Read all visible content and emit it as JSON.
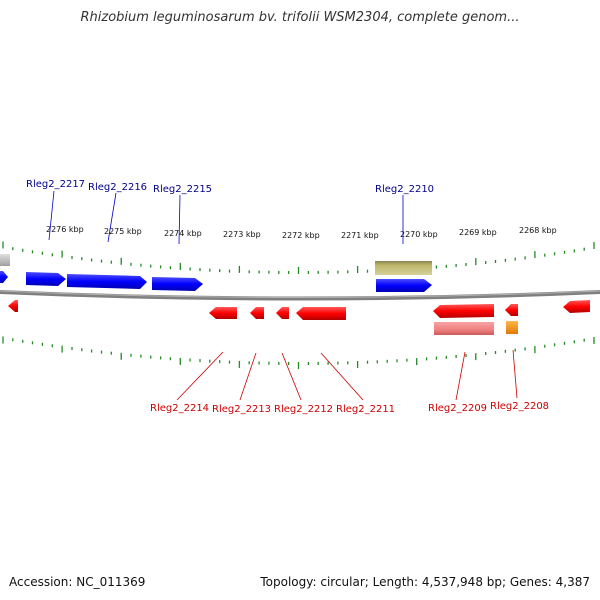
{
  "title": "Rhizobium leguminosarum bv. trifolii WSM2304, complete genom...",
  "footer": {
    "accession": "Accession: NC_011369",
    "summary": "Topology: circular; Length: 4,537,948 bp; Genes: 4,387"
  },
  "colors": {
    "forward_cds": "#0000ff",
    "reverse_cds": "#ff0000",
    "forward_label": "#00008b",
    "reverse_label": "#cc0000",
    "tick": "#228b22",
    "backbone": "#808080",
    "forward_other": "#bdb76b",
    "reverse_other": "#f08080",
    "reverse_misc": "#ff8c00",
    "partial_gray": "#c0c0c0"
  },
  "axis": {
    "direction": "decreasing left-to-right",
    "tick_labels": [
      "2276 kbp",
      "2275 kbp",
      "2274 kbp",
      "2273 kbp",
      "2272 kbp",
      "2271 kbp",
      "2270 kbp",
      "2269 kbp",
      "2268 kbp"
    ]
  },
  "labels_forward": [
    "Rleg2_2217",
    "Rleg2_2216",
    "Rleg2_2215",
    "Rleg2_2210"
  ],
  "labels_reverse": [
    "Rleg2_2214",
    "Rleg2_2213",
    "Rleg2_2212",
    "Rleg2_2211",
    "Rleg2_2209",
    "Rleg2_2208"
  ],
  "features": {
    "forward": [
      {
        "type": "CDS",
        "color": "partial_gray"
      },
      {
        "type": "CDS",
        "color": "forward_cds"
      },
      {
        "type": "CDS",
        "color": "forward_cds"
      },
      {
        "type": "CDS",
        "color": "forward_cds"
      },
      {
        "type": "CDS",
        "color": "forward_cds"
      },
      {
        "type": "gene",
        "color": "forward_other"
      },
      {
        "type": "CDS",
        "color": "forward_cds"
      }
    ],
    "reverse": [
      {
        "type": "CDS",
        "color": "reverse_cds"
      },
      {
        "type": "CDS",
        "color": "reverse_cds"
      },
      {
        "type": "CDS",
        "color": "reverse_cds"
      },
      {
        "type": "CDS",
        "color": "reverse_cds"
      },
      {
        "type": "CDS",
        "color": "reverse_cds"
      },
      {
        "type": "CDS",
        "color": "reverse_cds"
      },
      {
        "type": "gene",
        "color": "reverse_other"
      },
      {
        "type": "CDS",
        "color": "reverse_cds"
      },
      {
        "type": "misc",
        "color": "reverse_misc"
      },
      {
        "type": "CDS",
        "color": "reverse_cds"
      }
    ]
  }
}
